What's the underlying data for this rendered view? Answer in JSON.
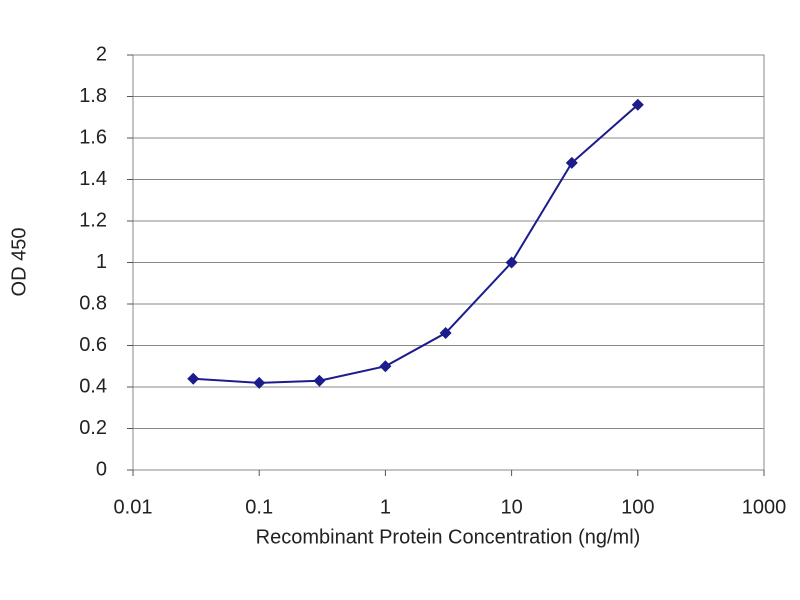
{
  "chart_data": {
    "type": "line",
    "x_label": "Recombinant Protein Concentration (ng/ml)",
    "y_label": "OD 450",
    "x": [
      0.03,
      0.1,
      0.3,
      1,
      3,
      10,
      30,
      100
    ],
    "series": [
      {
        "color": "#1c1c8c",
        "values": [
          0.44,
          0.42,
          0.43,
          0.5,
          0.66,
          1.0,
          1.48,
          1.76
        ]
      }
    ],
    "xscale": "log",
    "xlim": [
      0.01,
      1000
    ],
    "xticks": [
      0.01,
      0.1,
      1,
      10,
      100,
      1000
    ],
    "ylim": [
      0,
      2
    ],
    "yticks": [
      0,
      0.2,
      0.4,
      0.6,
      0.8,
      1,
      1.2,
      1.4,
      1.6,
      1.8,
      2
    ],
    "grid": true
  }
}
